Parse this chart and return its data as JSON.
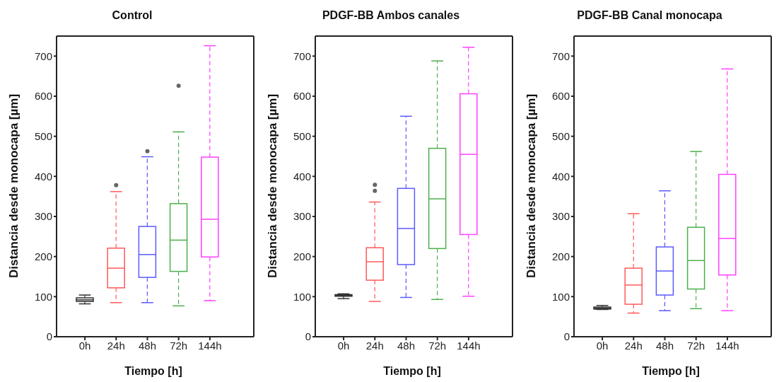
{
  "chart_data": [
    {
      "type": "box",
      "title": "Control",
      "xlabel": "Tiempo [h]",
      "ylabel": "Distancia desde monocapa [µm]",
      "categories": [
        "0h",
        "24h",
        "48h",
        "72h",
        "144h"
      ],
      "colors": [
        "#333333",
        "#ff5a5a",
        "#5a5aff",
        "#4caf4c",
        "#ff40ff"
      ],
      "ylim": [
        0,
        750
      ],
      "yticks": [
        0,
        100,
        200,
        300,
        400,
        500,
        600,
        700
      ],
      "grid": false,
      "legend": false,
      "line_style": "dashed",
      "boxes": [
        {
          "low": 82,
          "q1": 88,
          "median": 92,
          "q3": 97,
          "high": 104
        },
        {
          "low": 85,
          "q1": 122,
          "median": 171,
          "q3": 221,
          "high": 362,
          "outliers": [
            378
          ]
        },
        {
          "low": 85,
          "q1": 148,
          "median": 205,
          "q3": 275,
          "high": 449,
          "outliers": [
            463
          ]
        },
        {
          "low": 77,
          "q1": 163,
          "median": 241,
          "q3": 332,
          "high": 511,
          "outliers": [
            626
          ]
        },
        {
          "low": 90,
          "q1": 199,
          "median": 293,
          "q3": 448,
          "high": 726
        }
      ]
    },
    {
      "type": "box",
      "title": "PDGF-BB Ambos canales",
      "xlabel": "Tiempo [h]",
      "ylabel": "Distancia desde monocapa [µm]",
      "categories": [
        "0h",
        "24h",
        "48h",
        "72h",
        "144h"
      ],
      "colors": [
        "#333333",
        "#ff5a5a",
        "#5a5aff",
        "#4caf4c",
        "#ff40ff"
      ],
      "ylim": [
        0,
        750
      ],
      "yticks": [
        0,
        100,
        200,
        300,
        400,
        500,
        600,
        700
      ],
      "grid": false,
      "legend": false,
      "line_style": "dashed",
      "boxes": [
        {
          "low": 95,
          "q1": 101,
          "median": 103,
          "q3": 105,
          "high": 107
        },
        {
          "low": 88,
          "q1": 141,
          "median": 187,
          "q3": 222,
          "high": 336,
          "outliers": [
            364,
            379
          ]
        },
        {
          "low": 98,
          "q1": 180,
          "median": 270,
          "q3": 370,
          "high": 550
        },
        {
          "low": 93,
          "q1": 220,
          "median": 344,
          "q3": 470,
          "high": 688
        },
        {
          "low": 101,
          "q1": 255,
          "median": 455,
          "q3": 606,
          "high": 722
        }
      ]
    },
    {
      "type": "box",
      "title": "PDGF-BB Canal monocapa",
      "xlabel": "Tiempo [h]",
      "ylabel": "Distancia desde monocapa [µm]",
      "categories": [
        "0h",
        "24h",
        "48h",
        "72h",
        "144h"
      ],
      "colors": [
        "#333333",
        "#ff5a5a",
        "#5a5aff",
        "#4caf4c",
        "#ff40ff"
      ],
      "ylim": [
        0,
        750
      ],
      "yticks": [
        0,
        100,
        200,
        300,
        400,
        500,
        600,
        700
      ],
      "grid": false,
      "legend": false,
      "line_style": "dashed",
      "boxes": [
        {
          "low": 68,
          "q1": 69,
          "median": 71,
          "q3": 74,
          "high": 78
        },
        {
          "low": 59,
          "q1": 81,
          "median": 129,
          "q3": 171,
          "high": 307
        },
        {
          "low": 65,
          "q1": 104,
          "median": 164,
          "q3": 224,
          "high": 364
        },
        {
          "low": 70,
          "q1": 119,
          "median": 190,
          "q3": 273,
          "high": 462
        },
        {
          "low": 65,
          "q1": 154,
          "median": 245,
          "q3": 405,
          "high": 668
        }
      ]
    }
  ]
}
